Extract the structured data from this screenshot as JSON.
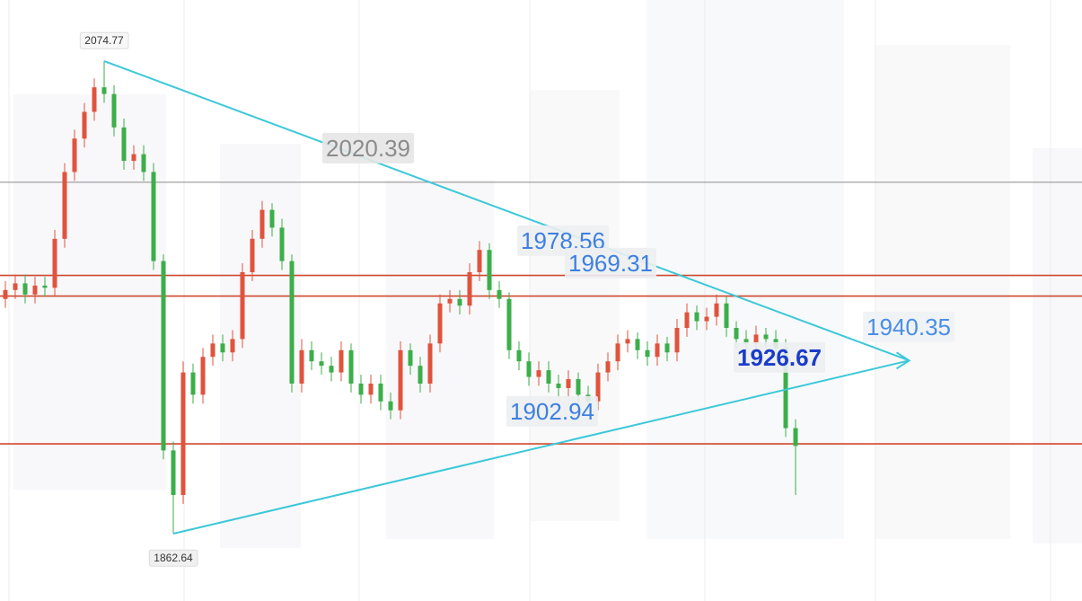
{
  "chart_data": {
    "type": "candlestick",
    "xlim": [
      -0.545,
      109
    ],
    "ylim": [
      1832.4,
      2102.2
    ],
    "up_color": "#e0533d",
    "down_color": "#3cae4a",
    "open": [
      1968,
      1972,
      1975,
      1970,
      1974,
      1973,
      1995,
      2025,
      2040,
      2052,
      2063,
      2060,
      2045,
      2030,
      2033,
      2025,
      1985,
      1900,
      1880,
      1935,
      1925,
      1942,
      1948,
      1944,
      1950,
      1980,
      1995,
      2008,
      2000,
      1985,
      1930,
      1945,
      1940,
      1938,
      1935,
      1945,
      1930,
      1925,
      1930,
      1922,
      1918,
      1945,
      1938,
      1930,
      1948,
      1966,
      1968,
      1965,
      1980,
      1990,
      1972,
      1968,
      1945,
      1940,
      1933,
      1936,
      1930,
      1928,
      1932,
      1925,
      1922,
      1935,
      1940,
      1948,
      1950,
      1945,
      1942,
      1948,
      1944,
      1955,
      1962,
      1958,
      1960,
      1966,
      1955,
      1950,
      1948,
      1952,
      1950,
      1946,
      1910
    ],
    "high": [
      1976,
      1979,
      1979,
      1978,
      1978,
      1999,
      2029,
      2044,
      2056,
      2067,
      2074.77,
      2064,
      2049,
      2037,
      2037,
      2029,
      1988,
      1904,
      1940,
      1939,
      1946,
      1952,
      1952,
      1954,
      1984,
      1999,
      2012,
      2011,
      2004,
      1988,
      1950,
      1949,
      1944,
      1942,
      1949,
      1948,
      1934,
      1934,
      1934,
      1926,
      1949,
      1948,
      1942,
      1952,
      1970,
      1972,
      1972,
      1984,
      1994,
      1993,
      1976,
      1971,
      1949,
      1944,
      1940,
      1940,
      1934,
      1936,
      1935,
      1929,
      1939,
      1944,
      1952,
      1954,
      1953,
      1949,
      1952,
      1951,
      1959,
      1966,
      1965,
      1964,
      1970,
      1969,
      1958,
      1954,
      1956,
      1955,
      1954,
      1950,
      1914
    ],
    "low": [
      1964,
      1968,
      1966,
      1966,
      1969,
      1969,
      1991,
      2021,
      2036,
      2048,
      2056,
      2041,
      2026,
      2026,
      2021,
      1981,
      1896,
      1862.64,
      1876,
      1921,
      1921,
      1938,
      1940,
      1940,
      1946,
      1976,
      1991,
      1996,
      1981,
      1926,
      1926,
      1936,
      1934,
      1931,
      1931,
      1926,
      1921,
      1921,
      1918,
      1914,
      1914,
      1934,
      1926,
      1926,
      1944,
      1962,
      1961,
      1961,
      1976,
      1968,
      1964,
      1941,
      1936,
      1929,
      1929,
      1926,
      1924,
      1924,
      1921,
      1918,
      1918,
      1931,
      1936,
      1944,
      1941,
      1938,
      1938,
      1940,
      1940,
      1951,
      1954,
      1954,
      1956,
      1951,
      1946,
      1944,
      1944,
      1946,
      1942,
      1906,
      1880
    ],
    "close": [
      1972,
      1975,
      1970,
      1974,
      1973,
      1995,
      2025,
      2040,
      2052,
      2063,
      2060,
      2045,
      2030,
      2033,
      2025,
      1985,
      1900,
      1880,
      1935,
      1925,
      1942,
      1948,
      1944,
      1950,
      1980,
      1995,
      2008,
      2000,
      1985,
      1930,
      1945,
      1940,
      1938,
      1935,
      1945,
      1930,
      1925,
      1930,
      1922,
      1918,
      1945,
      1938,
      1930,
      1948,
      1966,
      1968,
      1965,
      1980,
      1990,
      1972,
      1968,
      1945,
      1940,
      1933,
      1936,
      1930,
      1928,
      1932,
      1925,
      1922,
      1935,
      1940,
      1948,
      1950,
      1945,
      1942,
      1948,
      1944,
      1955,
      1962,
      1958,
      1960,
      1966,
      1955,
      1950,
      1948,
      1952,
      1950,
      1946,
      1910,
      1902
    ],
    "levels": [
      {
        "value": 2020.39,
        "color": "#8a8a8a"
      },
      {
        "value": 1978.56,
        "color": "#d0472e"
      },
      {
        "value": 1969.31,
        "color": "#d0472e"
      },
      {
        "value": 1902.94,
        "color": "#d0472e"
      }
    ],
    "trend_color": "#3cc8d8",
    "high_point": {
      "x": 10,
      "value": 2074.77
    },
    "low_point": {
      "x": 17,
      "value": 1862.64
    },
    "target": {
      "x": 91.5,
      "value": 1940.35
    },
    "breakout": {
      "value": 1926.67
    }
  }
}
